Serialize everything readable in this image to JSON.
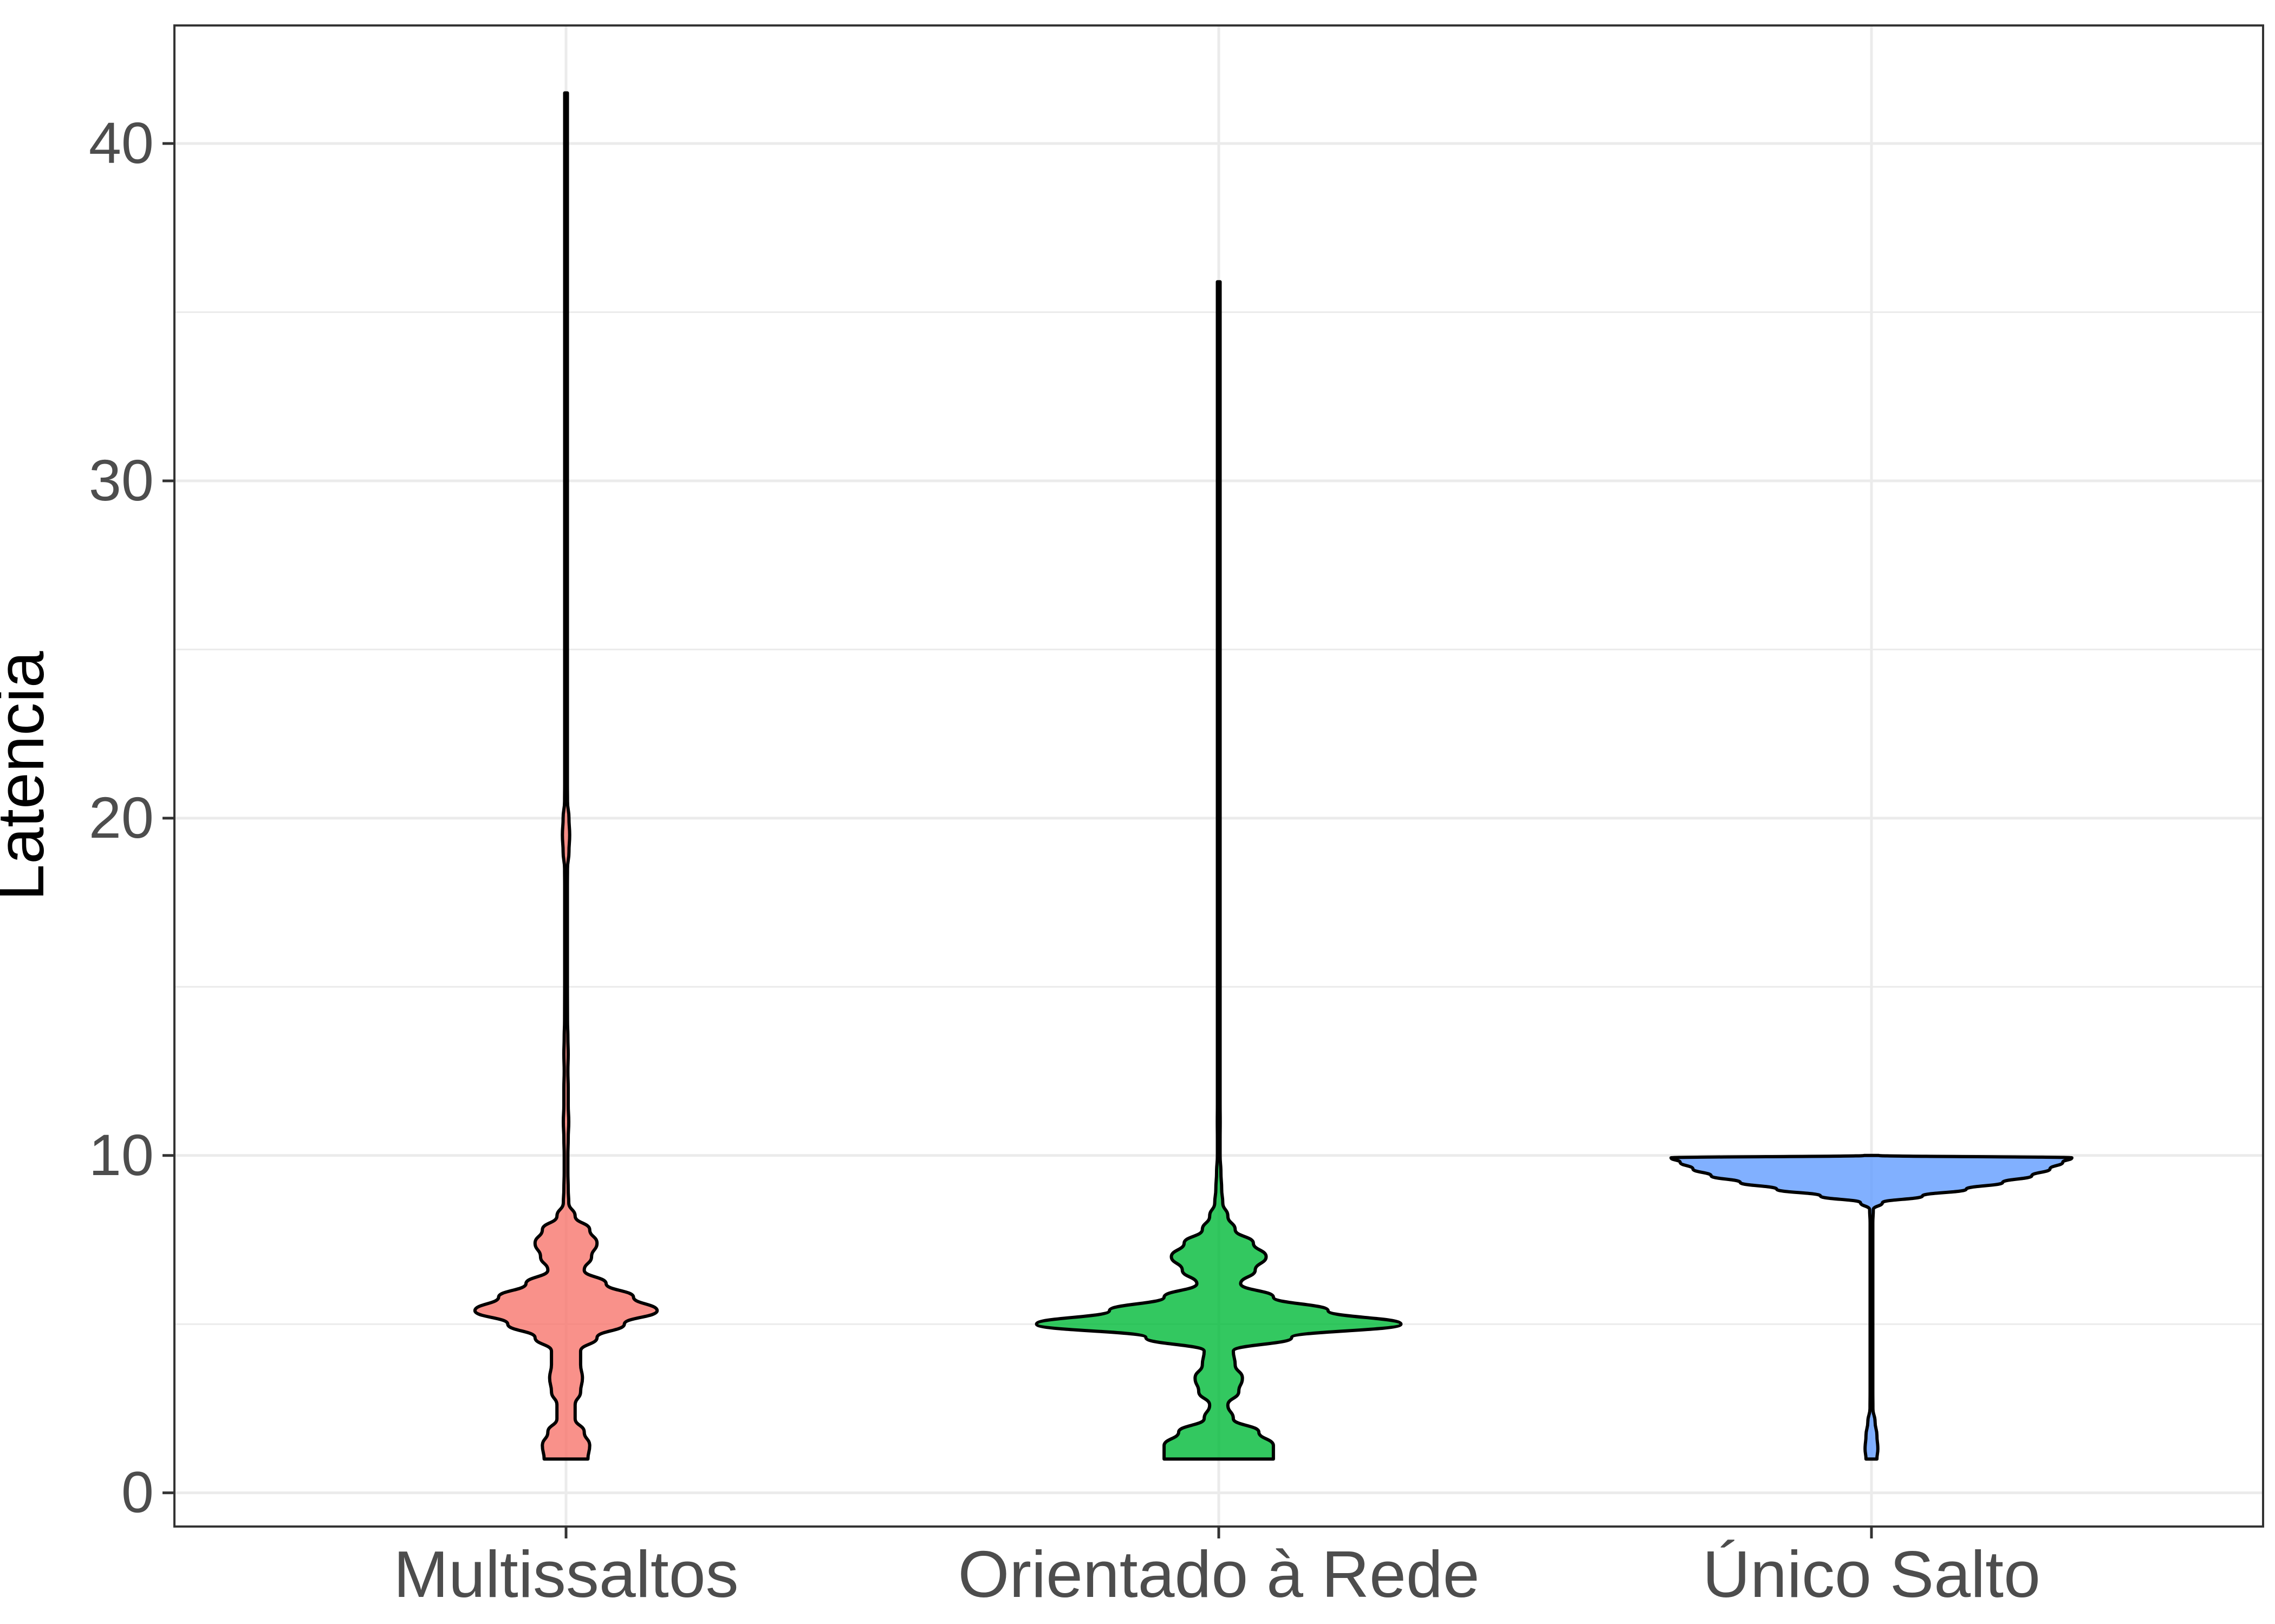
{
  "chart_data": {
    "type": "violin",
    "title": "",
    "xlabel": "",
    "ylabel": "Latencia",
    "ylim": [
      -1,
      43.5
    ],
    "yticks": [
      0,
      10,
      20,
      30,
      40
    ],
    "grid": true,
    "legend": "none",
    "categories": [
      "Multissaltos",
      "Orientado à Rede",
      "Único Salto"
    ],
    "series": [
      {
        "color": "#F8766D",
        "min": 1,
        "max": 41.5,
        "density": [
          [
            1,
            0.12
          ],
          [
            1.4,
            0.13
          ],
          [
            1.8,
            0.1
          ],
          [
            2.2,
            0.05
          ],
          [
            2.6,
            0.05
          ],
          [
            3,
            0.08
          ],
          [
            3.4,
            0.09
          ],
          [
            3.8,
            0.08
          ],
          [
            4.2,
            0.08
          ],
          [
            4.6,
            0.17
          ],
          [
            5,
            0.32
          ],
          [
            5.4,
            0.5
          ],
          [
            5.8,
            0.37
          ],
          [
            6.2,
            0.22
          ],
          [
            6.6,
            0.1
          ],
          [
            7,
            0.14
          ],
          [
            7.4,
            0.17
          ],
          [
            7.8,
            0.13
          ],
          [
            8.2,
            0.05
          ],
          [
            8.6,
            0.015
          ],
          [
            9,
            0.012
          ],
          [
            9.5,
            0.01
          ],
          [
            10,
            0.01
          ],
          [
            10.5,
            0.012
          ],
          [
            11,
            0.015
          ],
          [
            11.5,
            0.012
          ],
          [
            12,
            0.012
          ],
          [
            12.5,
            0.01
          ],
          [
            13,
            0.012
          ],
          [
            13.5,
            0.01
          ],
          [
            14,
            0.008
          ],
          [
            15,
            0.002
          ],
          [
            16,
            0.002
          ],
          [
            17,
            0.002
          ],
          [
            18,
            0.004
          ],
          [
            18.5,
            0.008
          ],
          [
            19,
            0.016
          ],
          [
            19.5,
            0.02
          ],
          [
            20,
            0.016
          ],
          [
            20.5,
            0.008
          ],
          [
            21,
            0.004
          ],
          [
            22,
            0.004
          ],
          [
            23,
            0.001
          ],
          [
            25,
            0.001
          ],
          [
            30,
            0.001
          ],
          [
            35,
            0.001
          ],
          [
            36,
            0.002
          ],
          [
            37,
            0.001
          ],
          [
            40,
            0.001
          ],
          [
            41.5,
            0
          ]
        ]
      },
      {
        "color": "#00BA38",
        "min": 1,
        "max": 35.9,
        "density": [
          [
            1,
            0.3
          ],
          [
            1.4,
            0.3
          ],
          [
            1.8,
            0.22
          ],
          [
            2.2,
            0.08
          ],
          [
            2.6,
            0.05
          ],
          [
            3,
            0.11
          ],
          [
            3.4,
            0.13
          ],
          [
            3.8,
            0.09
          ],
          [
            4.2,
            0.08
          ],
          [
            4.6,
            0.4
          ],
          [
            5,
            1
          ],
          [
            5.4,
            0.6
          ],
          [
            5.8,
            0.3
          ],
          [
            6.2,
            0.12
          ],
          [
            6.6,
            0.2
          ],
          [
            7,
            0.26
          ],
          [
            7.4,
            0.19
          ],
          [
            7.8,
            0.09
          ],
          [
            8.2,
            0.05
          ],
          [
            8.6,
            0.022
          ],
          [
            9,
            0.016
          ],
          [
            9.5,
            0.012
          ],
          [
            10,
            0.006
          ],
          [
            10.5,
            0.004
          ],
          [
            11,
            0.008
          ],
          [
            11.5,
            0.006
          ],
          [
            12,
            0.003
          ],
          [
            13,
            0.002
          ],
          [
            15,
            0.002
          ],
          [
            19,
            0.002
          ],
          [
            20,
            0.001
          ],
          [
            22,
            0.002
          ],
          [
            25,
            0.001
          ],
          [
            30,
            0.001
          ],
          [
            35.9,
            0
          ]
        ]
      },
      {
        "color": "#619CFF",
        "min": 1,
        "max": 10,
        "density": [
          [
            1,
            0.03
          ],
          [
            1.3,
            0.035
          ],
          [
            1.7,
            0.03
          ],
          [
            2.1,
            0.02
          ],
          [
            2.5,
            0.008
          ],
          [
            3,
            0.005
          ],
          [
            4,
            0.004
          ],
          [
            5,
            0.004
          ],
          [
            6,
            0.004
          ],
          [
            7,
            0.004
          ],
          [
            8,
            0.005
          ],
          [
            8.4,
            0.01
          ],
          [
            8.6,
            0.06
          ],
          [
            8.8,
            0.28
          ],
          [
            9,
            0.52
          ],
          [
            9.2,
            0.72
          ],
          [
            9.4,
            0.88
          ],
          [
            9.6,
            0.98
          ],
          [
            9.8,
            1.05
          ],
          [
            9.93,
            1.1
          ],
          [
            10,
            0.04
          ]
        ]
      }
    ]
  }
}
